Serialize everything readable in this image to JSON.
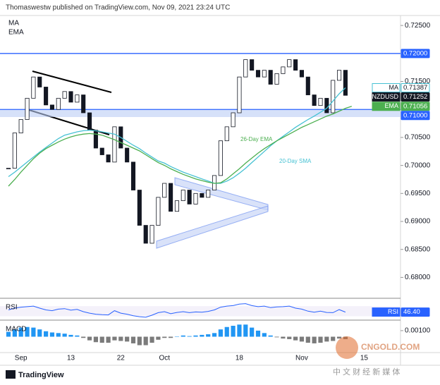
{
  "header": {
    "text": "Thomaswestw published on TradingView.com, Nov 09, 2021 23:24 UTC"
  },
  "footer": {
    "logo": "TradingView"
  },
  "watermark": {
    "site": "CNGOLD.COM",
    "tagline": "中 文 财 经 新 媒 体"
  },
  "chart_data": [
    {
      "type": "candlestick",
      "categories": [
        null,
        null,
        "Sep",
        null,
        null,
        null,
        null,
        null,
        null,
        null,
        "13",
        null,
        null,
        null,
        null,
        null,
        null,
        null,
        "22",
        null,
        null,
        null,
        null,
        null,
        null,
        "Oct",
        null,
        null,
        null,
        null,
        null,
        null,
        null,
        null,
        null,
        null,
        null,
        "18",
        null,
        null,
        null,
        null,
        null,
        null,
        null,
        null,
        null,
        "Nov",
        null,
        null,
        null,
        null,
        null,
        null,
        null,
        null,
        null,
        "15",
        null,
        null,
        null,
        null
      ],
      "series": [
        {
          "name": "NZDUSD",
          "color": "#131722",
          "last_value_label": "0.71252",
          "values": [
            0.6995,
            0.7058,
            0.7082,
            0.712,
            0.7158,
            0.714,
            0.7108,
            0.71,
            0.712,
            0.7132,
            0.7113,
            0.7126,
            0.7094,
            0.7063,
            0.7031,
            0.7019,
            0.7006,
            0.7069,
            0.7031,
            0.7006,
            0.6956,
            0.6893,
            0.6861,
            0.6893,
            0.6943,
            0.6968,
            0.6918,
            0.6937,
            0.6956,
            0.6931,
            0.695,
            0.6943,
            0.6956,
            0.6982,
            0.7044,
            0.7069,
            0.7094,
            0.7158,
            0.7189,
            0.717,
            0.7158,
            0.717,
            0.7145,
            0.7164,
            0.7176,
            0.7189,
            0.717,
            0.7158,
            0.7126,
            0.7107,
            0.712,
            0.7094,
            0.7152,
            0.717,
            0.71252,
            null,
            null,
            null,
            null,
            null,
            null,
            null
          ]
        },
        {
          "name": "MA",
          "color": "#45c1d3",
          "last_value_label": "0.71387",
          "values": [
            0.698,
            0.6988,
            0.6997,
            0.7006,
            0.7015,
            0.7024,
            0.7032,
            0.704,
            0.7048,
            0.7054,
            0.7057,
            0.706,
            0.7062,
            0.7063,
            0.7062,
            0.706,
            0.7058,
            0.7056,
            0.705,
            0.7043,
            0.7036,
            0.703,
            0.7022,
            0.7015,
            0.7008,
            0.7004,
            0.6998,
            0.6993,
            0.6988,
            0.6984,
            0.698,
            0.6976,
            0.6972,
            0.6968,
            0.6968,
            0.6972,
            0.6978,
            0.6986,
            0.6995,
            0.7005,
            0.7015,
            0.7025,
            0.7035,
            0.7044,
            0.7052,
            0.706,
            0.7068,
            0.7075,
            0.7082,
            0.7088,
            0.7095,
            0.7102,
            0.7115,
            0.7128,
            0.71387,
            null,
            null,
            null,
            null,
            null,
            null,
            null
          ]
        },
        {
          "name": "EMA",
          "color": "#4caf50",
          "last_value_label": "0.71056",
          "values": [
            0.6963,
            0.6975,
            0.6988,
            0.7,
            0.7012,
            0.7022,
            0.703,
            0.7036,
            0.7042,
            0.7047,
            0.7051,
            0.7054,
            0.7056,
            0.7057,
            0.7056,
            0.7054,
            0.705,
            0.7046,
            0.7041,
            0.7036,
            0.7031,
            0.7026,
            0.7019,
            0.7012,
            0.7005,
            0.7,
            0.6994,
            0.6989,
            0.6984,
            0.698,
            0.6976,
            0.6973,
            0.697,
            0.6968,
            0.6969,
            0.6976,
            0.6985,
            0.6994,
            0.7004,
            0.7013,
            0.7022,
            0.703,
            0.7037,
            0.7044,
            0.705,
            0.7056,
            0.7062,
            0.7068,
            0.7073,
            0.7078,
            0.7083,
            0.7088,
            0.7092,
            0.7097,
            0.7102,
            0.71056,
            null,
            null,
            null,
            null,
            null,
            null
          ]
        }
      ],
      "annotations": [
        {
          "text": "26-Day EMA",
          "color": "#4caf50"
        },
        {
          "text": "20-Day SMA",
          "color": "#45c1d3"
        }
      ],
      "levels": [
        {
          "value": 0.72,
          "label": "0.72000",
          "color": "#2962ff"
        },
        {
          "value": 0.71,
          "label": "0.71000",
          "color": "#2962ff"
        }
      ],
      "ylim": [
        0.6764,
        0.7264
      ],
      "yticks": [
        {
          "value": 0.725,
          "label": "0.72500"
        },
        {
          "value": 0.715,
          "label": "0.71500"
        },
        {
          "value": 0.705,
          "label": "0.70500"
        },
        {
          "value": 0.7,
          "label": "0.70000"
        },
        {
          "value": 0.695,
          "label": "0.69500"
        },
        {
          "value": 0.69,
          "label": "0.69000"
        },
        {
          "value": 0.685,
          "label": "0.68500"
        },
        {
          "value": 0.68,
          "label": "0.68000"
        }
      ]
    },
    {
      "type": "line",
      "title": "RSI",
      "ylim": [
        20,
        90
      ],
      "series": [
        {
          "name": "RSI",
          "color": "#2962ff",
          "last_value_label": "46.40",
          "values": [
            55,
            62,
            66,
            68,
            70,
            62,
            55,
            52,
            58,
            60,
            54,
            57,
            48,
            42,
            38,
            36,
            35,
            52,
            42,
            38,
            32,
            28,
            26,
            34,
            44,
            48,
            40,
            45,
            48,
            44,
            47,
            46,
            49,
            55,
            66,
            70,
            72,
            78,
            80,
            72,
            68,
            70,
            64,
            67,
            68,
            70,
            62,
            58,
            50,
            46,
            50,
            45,
            44,
            56,
            46.4,
            null,
            null,
            null,
            null,
            null,
            null,
            null
          ]
        }
      ]
    },
    {
      "type": "bar",
      "title": "MACD",
      "ylim": [
        -0.0025,
        0.0025
      ],
      "yticks": [
        {
          "value": 0.001,
          "label": "0.00100"
        }
      ],
      "series": [
        {
          "name": "Histogram",
          "color": "#2196f3",
          "negative_color": "#7b7b7b",
          "values": [
            0.0008,
            0.0012,
            0.0015,
            0.0016,
            0.0015,
            0.0012,
            0.0009,
            0.0007,
            0.0006,
            0.0005,
            0.0003,
            0.0002,
            -0.0002,
            -0.0006,
            -0.0009,
            -0.001,
            -0.001,
            -0.0006,
            -0.0007,
            -0.0008,
            -0.0011,
            -0.0014,
            -0.0014,
            -0.001,
            -0.0005,
            -0.0002,
            -0.0002,
            0,
            0.0002,
            0.0001,
            0.0002,
            0.0003,
            0.0004,
            0.0006,
            0.0012,
            0.0016,
            0.0018,
            0.002,
            0.002,
            0.0015,
            0.001,
            0.0006,
            0.0002,
            -0.0001,
            -0.0003,
            -0.0004,
            -0.0006,
            -0.0008,
            -0.001,
            -0.0011,
            -0.001,
            -0.0008,
            -0.0007,
            -0.0003,
            -0.0004,
            null,
            null,
            null,
            null,
            null,
            null,
            null
          ]
        }
      ]
    }
  ]
}
